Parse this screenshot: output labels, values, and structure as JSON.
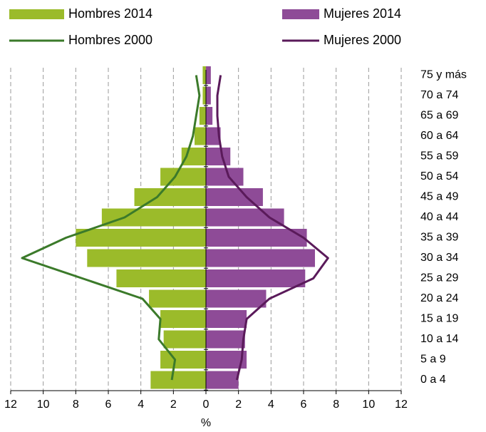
{
  "chart_data": {
    "type": "pyramid",
    "categories": [
      "0 a 4",
      "5 a 9",
      "10 a 14",
      "15 a 19",
      "20 a 24",
      "25 a 29",
      "30 a 34",
      "35 a 39",
      "40 a 44",
      "45 a 49",
      "50 a 54",
      "55 a 59",
      "60 a 64",
      "65 a 69",
      "70 a 74",
      "75 y más"
    ],
    "series": [
      {
        "name": "Hombres 2014",
        "kind": "bar",
        "side": "left",
        "color": "#9bbb2a",
        "values": [
          3.4,
          2.8,
          2.6,
          2.8,
          3.5,
          5.5,
          7.3,
          8.0,
          6.4,
          4.4,
          2.8,
          1.5,
          0.7,
          0.4,
          0.2,
          0.2
        ]
      },
      {
        "name": "Mujeres 2014",
        "kind": "bar",
        "side": "right",
        "color": "#8e4b97",
        "values": [
          2.0,
          2.5,
          2.4,
          2.5,
          3.7,
          6.1,
          6.7,
          6.2,
          4.8,
          3.5,
          2.3,
          1.5,
          0.9,
          0.4,
          0.3,
          0.3
        ]
      },
      {
        "name": "Hombres 2000",
        "kind": "line",
        "side": "left",
        "color": "#3b7a2a",
        "values": [
          2.1,
          1.9,
          2.9,
          2.8,
          3.9,
          7.6,
          11.3,
          8.6,
          5.0,
          3.0,
          1.9,
          1.2,
          0.8,
          0.6,
          0.4,
          0.6
        ]
      },
      {
        "name": "Mujeres 2000",
        "kind": "line",
        "side": "right",
        "color": "#5a1a5a",
        "values": [
          1.9,
          2.2,
          2.3,
          2.5,
          3.9,
          6.6,
          7.5,
          6.0,
          3.9,
          2.5,
          1.4,
          1.0,
          0.8,
          0.7,
          0.7,
          0.9
        ]
      }
    ],
    "xlabel": "%",
    "xlim": [
      -12,
      12
    ],
    "xticks": [
      {
        "value": -12,
        "label": "12"
      },
      {
        "value": -10,
        "label": "10"
      },
      {
        "value": -8,
        "label": "8"
      },
      {
        "value": -6,
        "label": "6"
      },
      {
        "value": -4,
        "label": "4"
      },
      {
        "value": -2,
        "label": "2"
      },
      0,
      2,
      4,
      6,
      8,
      10,
      12
    ],
    "grid": true
  }
}
